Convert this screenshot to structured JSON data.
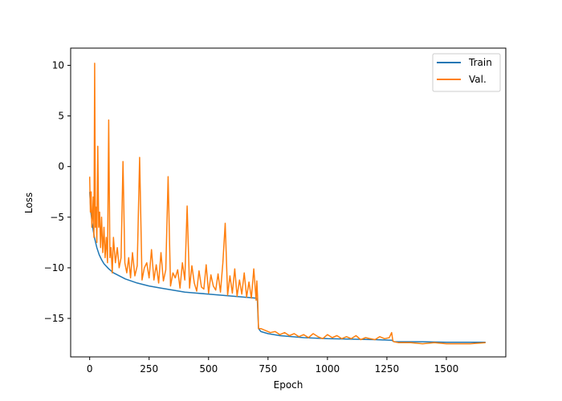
{
  "chart_data": {
    "type": "line",
    "xlabel": "Epoch",
    "ylabel": "Loss",
    "xlim": [
      -80,
      1750
    ],
    "ylim": [
      -18.8,
      11.7
    ],
    "xticks": [
      0,
      250,
      500,
      750,
      1000,
      1250,
      1500
    ],
    "xtick_labels": [
      "0",
      "250",
      "500",
      "750",
      "1000",
      "1250",
      "1500"
    ],
    "yticks": [
      -15,
      -10,
      -5,
      0,
      5,
      10
    ],
    "ytick_labels": [
      "−15",
      "−10",
      "−5",
      "0",
      "5",
      "10"
    ],
    "legend_position": "top-right",
    "grid": false,
    "series": [
      {
        "name": "Train",
        "color": "#1f77b4",
        "x": [
          0,
          5,
          10,
          15,
          20,
          30,
          40,
          50,
          60,
          80,
          100,
          150,
          200,
          250,
          300,
          350,
          400,
          450,
          500,
          550,
          600,
          650,
          700,
          705,
          710,
          720,
          750,
          800,
          900,
          1000,
          1100,
          1200,
          1270,
          1280,
          1300,
          1400,
          1500,
          1600,
          1665
        ],
        "y": [
          -2.5,
          -4.5,
          -5.5,
          -6.3,
          -7.0,
          -8.0,
          -8.7,
          -9.2,
          -9.6,
          -10.1,
          -10.5,
          -11.1,
          -11.5,
          -11.8,
          -12.0,
          -12.2,
          -12.4,
          -12.5,
          -12.6,
          -12.7,
          -12.8,
          -12.9,
          -13.0,
          -13.1,
          -16.0,
          -16.3,
          -16.5,
          -16.7,
          -16.9,
          -17.0,
          -17.05,
          -17.1,
          -17.15,
          -17.3,
          -17.3,
          -17.3,
          -17.35,
          -17.35,
          -17.35
        ]
      },
      {
        "name": "Val.",
        "color": "#ff7f0e",
        "x": [
          0,
          3,
          6,
          9,
          12,
          15,
          18,
          21,
          24,
          27,
          30,
          34,
          38,
          42,
          46,
          50,
          55,
          60,
          65,
          70,
          75,
          80,
          85,
          90,
          95,
          100,
          108,
          116,
          124,
          132,
          140,
          148,
          156,
          164,
          172,
          180,
          190,
          200,
          210,
          220,
          230,
          240,
          250,
          260,
          270,
          280,
          290,
          300,
          310,
          320,
          330,
          340,
          350,
          360,
          370,
          380,
          390,
          400,
          410,
          420,
          430,
          440,
          450,
          460,
          470,
          480,
          490,
          500,
          510,
          520,
          530,
          540,
          550,
          560,
          570,
          580,
          590,
          600,
          610,
          620,
          630,
          640,
          650,
          660,
          670,
          680,
          690,
          700,
          703,
          706,
          710,
          720,
          740,
          760,
          780,
          800,
          820,
          840,
          860,
          880,
          900,
          920,
          940,
          960,
          980,
          1000,
          1020,
          1040,
          1060,
          1080,
          1100,
          1120,
          1140,
          1160,
          1180,
          1200,
          1220,
          1240,
          1260,
          1270,
          1275,
          1280,
          1300,
          1350,
          1400,
          1450,
          1500,
          1550,
          1600,
          1665
        ],
        "y": [
          -1.0,
          -4.5,
          -2.5,
          -6.0,
          -5.0,
          -3.0,
          -7.0,
          10.2,
          -6.0,
          -4.0,
          -7.5,
          2.0,
          -6.0,
          -4.5,
          -8.0,
          -5.0,
          -8.5,
          -6.0,
          -9.0,
          -7.0,
          -9.5,
          4.6,
          -9.0,
          -8.0,
          -10.5,
          -7.0,
          -9.5,
          -8.0,
          -10.0,
          -9.0,
          0.5,
          -9.5,
          -10.5,
          -9.0,
          -11.0,
          -8.5,
          -10.8,
          -9.8,
          0.9,
          -11.2,
          -10.0,
          -9.5,
          -11.0,
          -8.2,
          -11.2,
          -9.7,
          -11.5,
          -8.5,
          -11.3,
          -10.2,
          -1.0,
          -11.8,
          -10.5,
          -11.0,
          -10.2,
          -12.0,
          -9.5,
          -11.2,
          -3.9,
          -12.0,
          -9.8,
          -11.5,
          -12.3,
          -10.3,
          -11.9,
          -12.1,
          -9.7,
          -12.5,
          -10.7,
          -11.8,
          -12.2,
          -10.6,
          -12.4,
          -9.5,
          -5.6,
          -12.7,
          -10.8,
          -12.5,
          -10.1,
          -12.8,
          -11.2,
          -12.6,
          -10.5,
          -12.9,
          -11.4,
          -13.0,
          -10.1,
          -13.2,
          -11.3,
          -12.8,
          -16.0,
          -16.0,
          -16.2,
          -16.4,
          -16.3,
          -16.6,
          -16.4,
          -16.7,
          -16.5,
          -16.8,
          -16.6,
          -16.9,
          -16.5,
          -16.8,
          -17.0,
          -16.6,
          -16.9,
          -16.7,
          -17.0,
          -16.8,
          -17.0,
          -16.7,
          -17.1,
          -16.9,
          -17.0,
          -17.1,
          -16.8,
          -17.0,
          -16.9,
          -16.4,
          -17.2,
          -17.3,
          -17.4,
          -17.4,
          -17.5,
          -17.4,
          -17.5,
          -17.5,
          -17.5,
          -17.4
        ]
      }
    ]
  }
}
